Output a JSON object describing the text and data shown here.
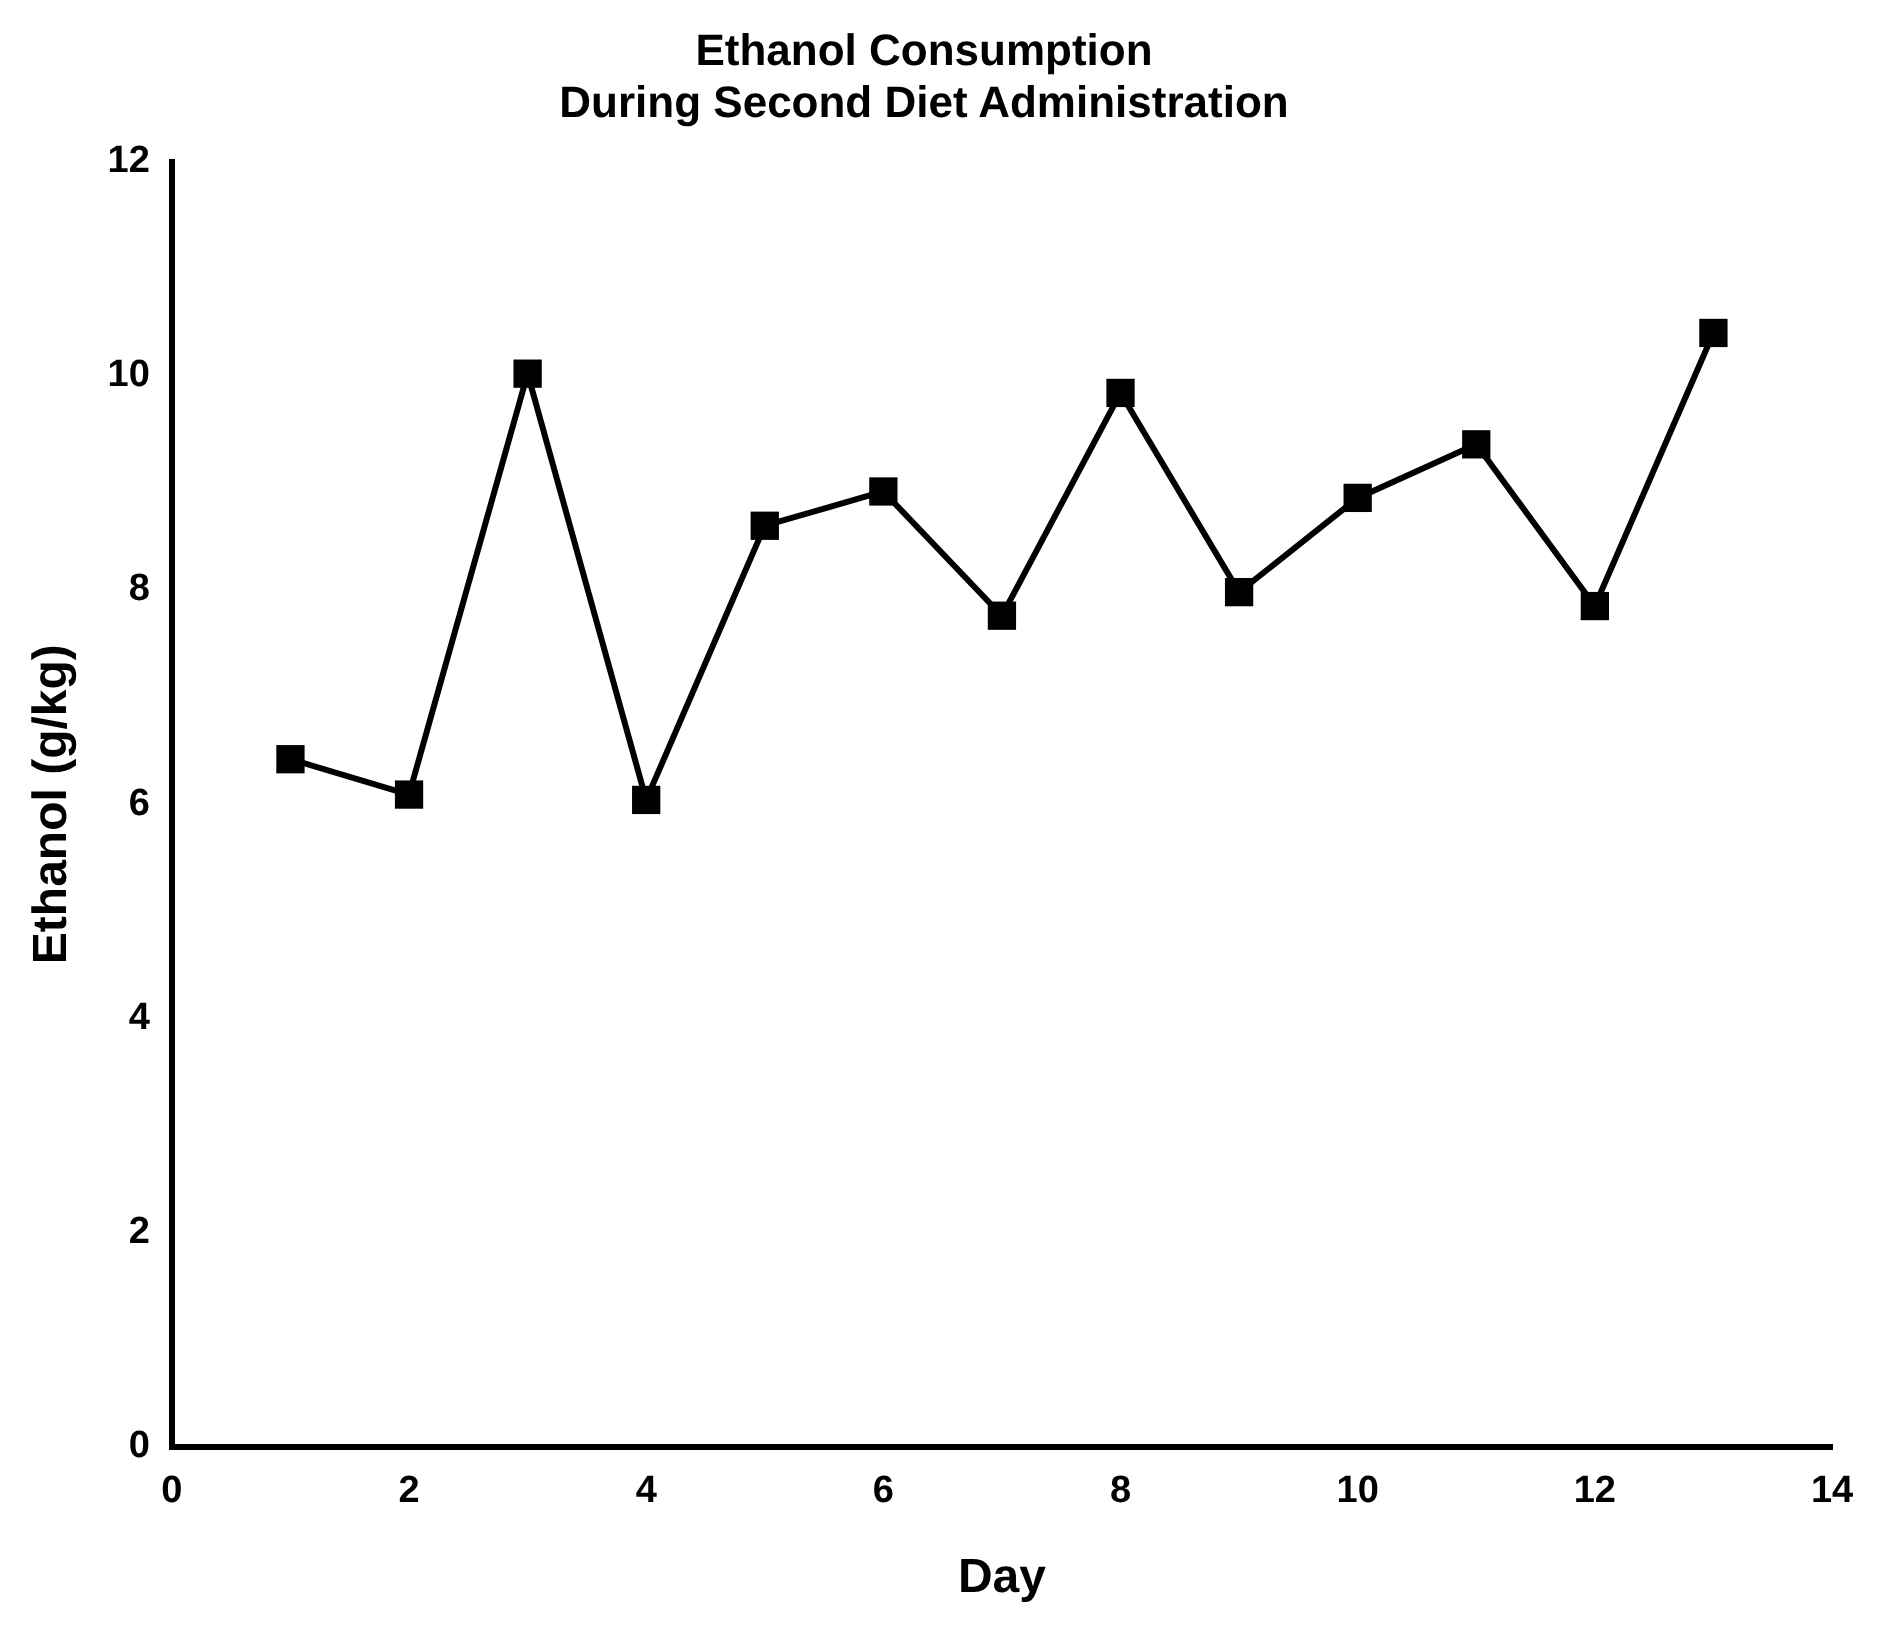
{
  "chart_data": {
    "type": "line",
    "title": [
      "Ethanol Consumption",
      "During Second Diet Administration"
    ],
    "xlabel": "Day",
    "ylabel": "Ethanol (g/kg)",
    "x": [
      1,
      2,
      3,
      4,
      5,
      6,
      7,
      8,
      9,
      10,
      11,
      12,
      13
    ],
    "series": [
      {
        "color": "#000000",
        "values": [
          6.42,
          6.09,
          10.02,
          6.04,
          8.6,
          8.92,
          7.76,
          9.84,
          7.98,
          8.86,
          9.36,
          7.85,
          10.4
        ]
      }
    ],
    "xlim": [
      0,
      14
    ],
    "xticks": [
      0,
      2,
      4,
      6,
      8,
      10,
      12,
      14
    ],
    "ylim": [
      0,
      12
    ],
    "yticks": [
      0,
      2,
      4,
      6,
      8,
      10,
      12
    ],
    "grid": false,
    "legend": false,
    "marker": "square",
    "line_style": "solid"
  }
}
